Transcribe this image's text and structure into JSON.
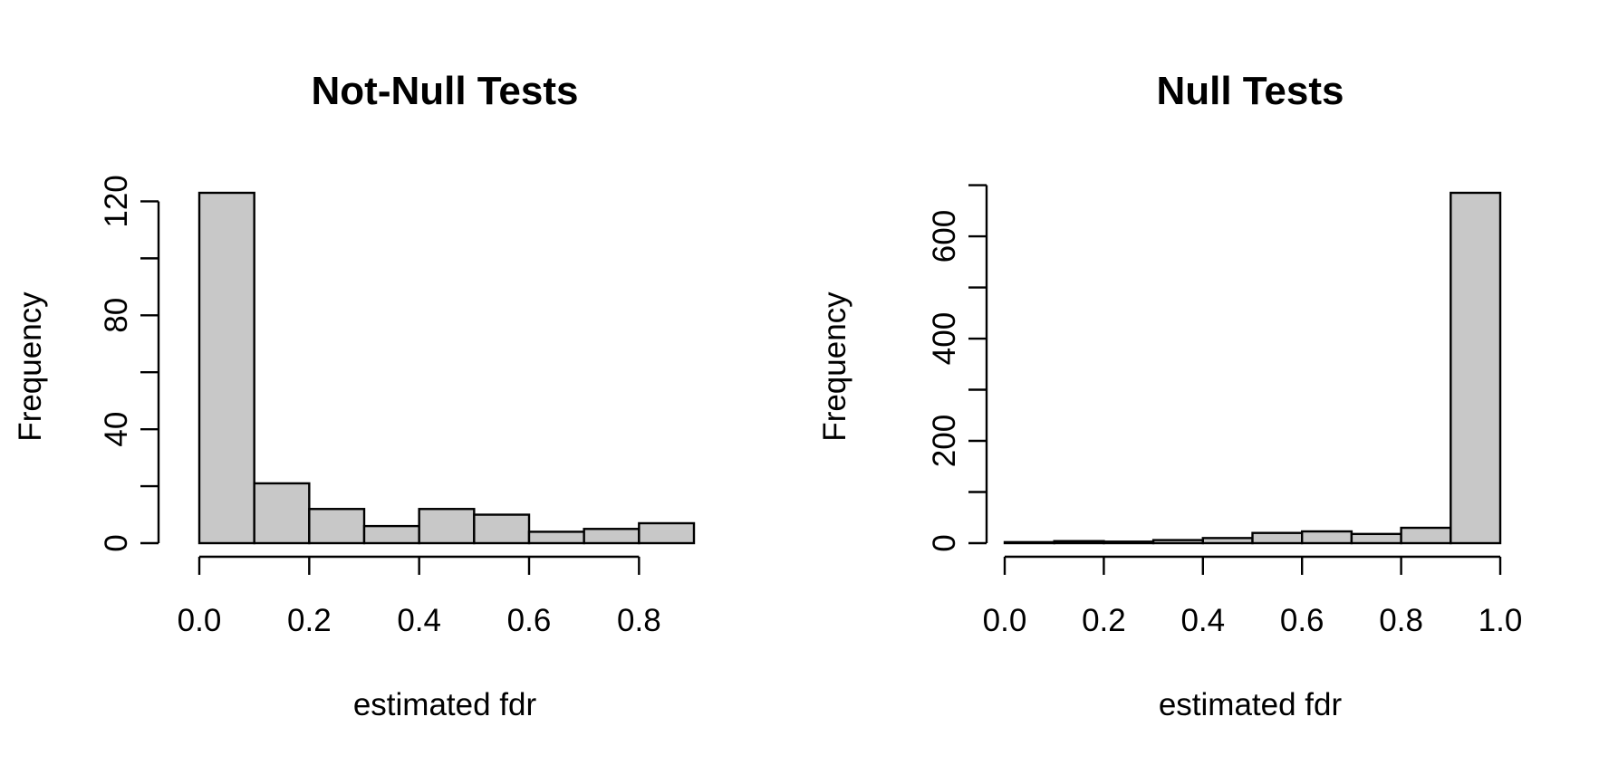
{
  "chart_data": [
    {
      "type": "bar",
      "title": "Not-Null Tests",
      "xlabel": "estimated fdr",
      "ylabel": "Frequency",
      "bins": [
        [
          0.0,
          0.1
        ],
        [
          0.1,
          0.2
        ],
        [
          0.2,
          0.3
        ],
        [
          0.3,
          0.4
        ],
        [
          0.4,
          0.5
        ],
        [
          0.5,
          0.6
        ],
        [
          0.6,
          0.7
        ],
        [
          0.7,
          0.8
        ],
        [
          0.8,
          0.9
        ]
      ],
      "values": [
        123,
        21,
        12,
        6,
        12,
        10,
        4,
        5,
        7
      ],
      "xlim": [
        0,
        0.9
      ],
      "ylim": [
        0,
        123
      ],
      "xticks": [
        0.0,
        0.2,
        0.4,
        0.6,
        0.8
      ],
      "xtick_labels": [
        "0.0",
        "0.2",
        "0.4",
        "0.6",
        "0.8"
      ],
      "yticks": [
        0,
        20,
        40,
        60,
        80,
        100,
        120
      ],
      "ytick_labels": [
        "0",
        "",
        "40",
        "",
        "80",
        "",
        "120"
      ],
      "grid": false
    },
    {
      "type": "bar",
      "title": "Null Tests",
      "xlabel": "estimated fdr",
      "ylabel": "Frequency",
      "bins": [
        [
          0.0,
          0.1
        ],
        [
          0.1,
          0.2
        ],
        [
          0.2,
          0.3
        ],
        [
          0.3,
          0.4
        ],
        [
          0.4,
          0.5
        ],
        [
          0.5,
          0.6
        ],
        [
          0.6,
          0.7
        ],
        [
          0.7,
          0.8
        ],
        [
          0.8,
          0.9
        ],
        [
          0.9,
          1.0
        ]
      ],
      "values": [
        2,
        4,
        3,
        6,
        10,
        20,
        23,
        18,
        30,
        685
      ],
      "xlim": [
        0,
        1.0
      ],
      "ylim": [
        0,
        685
      ],
      "xticks": [
        0.0,
        0.2,
        0.4,
        0.6,
        0.8,
        1.0
      ],
      "xtick_labels": [
        "0.0",
        "0.2",
        "0.4",
        "0.6",
        "0.8",
        "1.0"
      ],
      "yticks": [
        0,
        100,
        200,
        300,
        400,
        500,
        600,
        700
      ],
      "ytick_labels": [
        "0",
        "",
        "200",
        "",
        "400",
        "",
        "600",
        ""
      ],
      "grid": false
    }
  ]
}
